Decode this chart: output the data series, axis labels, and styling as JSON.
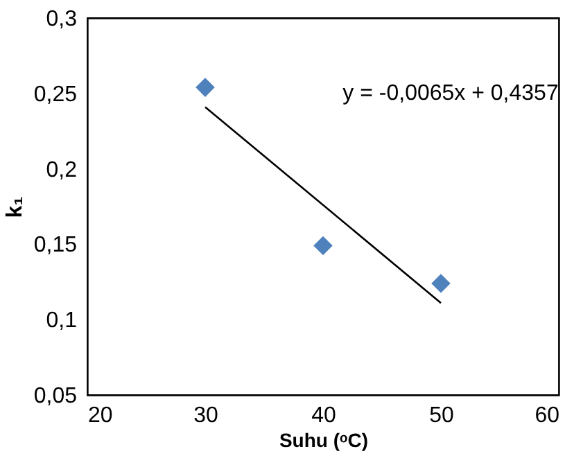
{
  "chart_data": {
    "type": "scatter",
    "xlabel": "Suhu (ᵒC)",
    "ylabel": "k₁",
    "x": [
      30,
      40,
      50
    ],
    "series": [
      {
        "color": "#4f81bd",
        "values": [
          0.254,
          0.149,
          0.124
        ]
      },
      {
        "type": "line",
        "color": "#000000",
        "marker": "none",
        "x": [
          30,
          50
        ],
        "values": [
          0.241,
          0.111
        ]
      }
    ],
    "xlim": [
      20,
      60
    ],
    "xticks": [
      20,
      30,
      40,
      50,
      60
    ],
    "ylim": [
      0.05,
      0.3
    ],
    "yticks": [
      {
        "value": 0.05,
        "label": "0,05"
      },
      {
        "value": 0.1,
        "label": "0,1"
      },
      {
        "value": 0.15,
        "label": "0,15"
      },
      {
        "value": 0.2,
        "label": "0,2"
      },
      {
        "value": 0.25,
        "label": "0,25"
      },
      {
        "value": 0.3,
        "label": "0,3"
      }
    ],
    "annotations": [
      "y = -0,0065x + 0,4357"
    ],
    "marker": "diamond"
  }
}
